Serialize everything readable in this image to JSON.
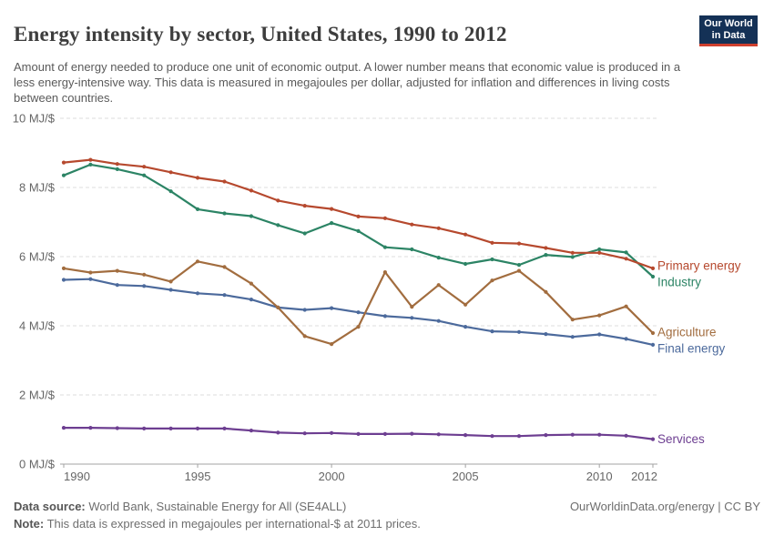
{
  "header": {
    "title": "Energy intensity by sector, United States, 1990 to 2012",
    "subtitle": "Amount of energy needed to produce one unit of economic output. A lower number means that economic value is produced in a less energy-intensive way. This data is measured in megajoules per dollar, adjusted for inflation and differences in living costs between countries."
  },
  "logo": {
    "line1": "Our World",
    "line2": "in Data"
  },
  "chart_data": {
    "type": "line",
    "title": "Energy intensity by sector, United States, 1990 to 2012",
    "x": [
      1990,
      1991,
      1992,
      1993,
      1994,
      1995,
      1996,
      1997,
      1998,
      1999,
      2000,
      2001,
      2002,
      2003,
      2004,
      2005,
      2006,
      2007,
      2008,
      2009,
      2010,
      2011,
      2012
    ],
    "x_ticks": [
      1990,
      1995,
      2000,
      2005,
      2010,
      2012
    ],
    "y_ticks": [
      0,
      2,
      4,
      6,
      8,
      10
    ],
    "y_tick_suffix": " MJ/$",
    "ylim": [
      0,
      10
    ],
    "grid": "horizontal-dashed",
    "legend_position": "right-of-line-ends",
    "series": [
      {
        "name": "Primary energy",
        "color": "#B6492E",
        "values": [
          8.72,
          8.8,
          8.68,
          8.6,
          8.44,
          8.28,
          8.17,
          7.91,
          7.62,
          7.47,
          7.38,
          7.16,
          7.11,
          6.93,
          6.82,
          6.64,
          6.4,
          6.38,
          6.25,
          6.11,
          6.11,
          5.94,
          5.66
        ]
      },
      {
        "name": "Industry",
        "color": "#2C8465",
        "values": [
          8.35,
          8.66,
          8.53,
          8.35,
          7.89,
          7.37,
          7.25,
          7.17,
          6.91,
          6.67,
          6.97,
          6.74,
          6.27,
          6.21,
          5.97,
          5.79,
          5.92,
          5.76,
          6.05,
          5.99,
          6.21,
          6.12,
          5.42
        ]
      },
      {
        "name": "Agriculture",
        "color": "#A26D3F",
        "values": [
          5.66,
          5.54,
          5.59,
          5.48,
          5.28,
          5.86,
          5.7,
          5.22,
          4.53,
          3.7,
          3.47,
          3.97,
          5.55,
          4.55,
          5.18,
          4.61,
          5.31,
          5.59,
          4.98,
          4.18,
          4.3,
          4.56,
          3.79
        ]
      },
      {
        "name": "Final energy",
        "color": "#4C6A9C",
        "values": [
          5.33,
          5.35,
          5.18,
          5.15,
          5.04,
          4.94,
          4.89,
          4.76,
          4.53,
          4.46,
          4.51,
          4.39,
          4.28,
          4.23,
          4.14,
          3.97,
          3.84,
          3.82,
          3.76,
          3.68,
          3.75,
          3.62,
          3.45
        ]
      },
      {
        "name": "Services",
        "color": "#6D3E91",
        "values": [
          1.05,
          1.05,
          1.04,
          1.03,
          1.03,
          1.03,
          1.03,
          0.97,
          0.91,
          0.89,
          0.9,
          0.87,
          0.87,
          0.88,
          0.86,
          0.84,
          0.81,
          0.81,
          0.84,
          0.85,
          0.85,
          0.82,
          0.72
        ]
      }
    ]
  },
  "footer": {
    "data_source_label": "Data source:",
    "data_source_text": " World Bank, Sustainable Energy for All (SE4ALL)",
    "note_label": "Note:",
    "note_text": " This data is expressed in megajoules per international-$ at 2011 prices.",
    "credit": "OurWorldinData.org/energy | CC BY"
  },
  "colors": {
    "grid": "#dedede",
    "axis": "#a3a3a3",
    "tick_text": "#666666",
    "logo_bg": "#143156",
    "logo_stripe": "#CE3F2E"
  }
}
